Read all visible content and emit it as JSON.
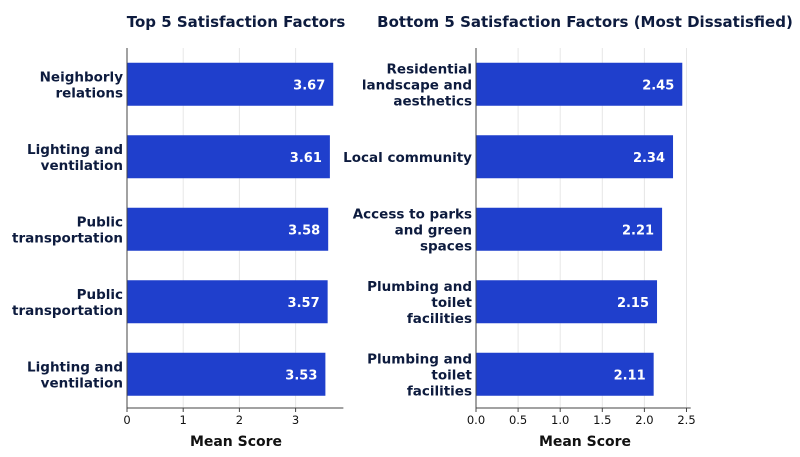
{
  "chart_data": [
    {
      "type": "bar",
      "orientation": "horizontal",
      "title": "Top 5 Satisfaction Factors",
      "xlabel": "Mean Score",
      "ylabel": "",
      "categories": [
        [
          "Neighborly",
          "relations"
        ],
        [
          "Lighting and",
          "ventilation"
        ],
        [
          "Public",
          "transportation"
        ],
        [
          "Public",
          "transportation"
        ],
        [
          "Lighting and",
          "ventilation"
        ]
      ],
      "values": [
        3.67,
        3.61,
        3.58,
        3.57,
        3.53
      ],
      "xlim": [
        0,
        3.85
      ],
      "xticks": [
        0,
        1,
        2,
        3
      ],
      "tick_labels": [
        "0",
        "1",
        "2",
        "3"
      ],
      "grid": "vertical",
      "bar_color": "#1f3fcc"
    },
    {
      "type": "bar",
      "orientation": "horizontal",
      "title": "Bottom 5 Satisfaction Factors (Most Dissatisfied)",
      "xlabel": "Mean Score",
      "ylabel": "",
      "categories": [
        [
          "Residential",
          "landscape and",
          "aesthetics"
        ],
        [
          "Local community"
        ],
        [
          "Access to parks",
          "and green",
          "spaces"
        ],
        [
          "Plumbing and",
          "toilet",
          "facilities"
        ],
        [
          "Plumbing and",
          "toilet",
          "facilities"
        ]
      ],
      "values": [
        2.45,
        2.34,
        2.21,
        2.15,
        2.11
      ],
      "xlim": [
        0,
        2.55
      ],
      "xticks": [
        0,
        0.5,
        1,
        1.5,
        2,
        2.5
      ],
      "tick_labels": [
        "0.0",
        "0.5",
        "1.0",
        "1.5",
        "2.0",
        "2.5"
      ],
      "grid": "vertical",
      "bar_color": "#1f3fcc"
    }
  ]
}
